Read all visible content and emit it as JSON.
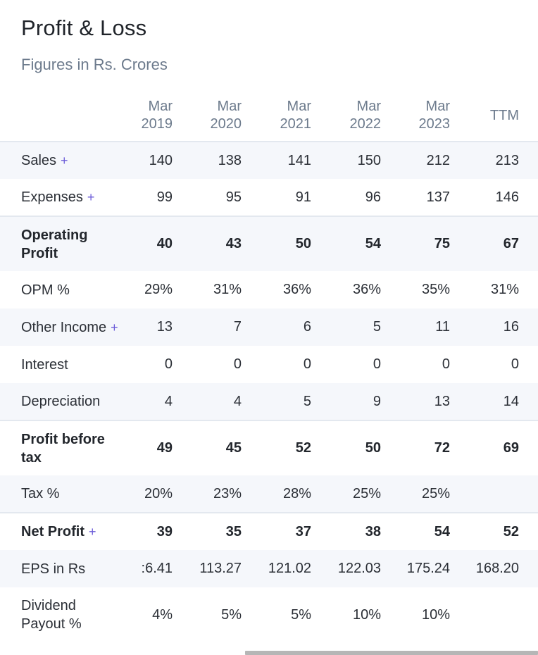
{
  "header": {
    "title": "Profit & Loss",
    "subtitle": "Figures in Rs. Crores"
  },
  "columns": [
    {
      "month": "Mar",
      "year": "2019"
    },
    {
      "month": "Mar",
      "year": "2020"
    },
    {
      "month": "Mar",
      "year": "2021"
    },
    {
      "month": "Mar",
      "year": "2022"
    },
    {
      "month": "Mar",
      "year": "2023"
    },
    {
      "label": "TTM"
    }
  ],
  "rows": [
    {
      "label": "Sales",
      "expand": "+",
      "values": [
        "140",
        "138",
        "141",
        "150",
        "212",
        "213"
      ]
    },
    {
      "label": "Expenses",
      "expand": "+",
      "values": [
        "99",
        "95",
        "91",
        "96",
        "137",
        "146"
      ]
    },
    {
      "label": "Operating Profit",
      "values": [
        "40",
        "43",
        "50",
        "54",
        "75",
        "67"
      ]
    },
    {
      "label": "OPM %",
      "values": [
        "29%",
        "31%",
        "36%",
        "36%",
        "35%",
        "31%"
      ]
    },
    {
      "label": "Other Income",
      "expand": "+",
      "values": [
        "13",
        "7",
        "6",
        "5",
        "11",
        "16"
      ]
    },
    {
      "label": "Interest",
      "values": [
        "0",
        "0",
        "0",
        "0",
        "0",
        "0"
      ]
    },
    {
      "label": "Depreciation",
      "values": [
        "4",
        "4",
        "5",
        "9",
        "13",
        "14"
      ]
    },
    {
      "label": "Profit before tax",
      "values": [
        "49",
        "45",
        "52",
        "50",
        "72",
        "69"
      ]
    },
    {
      "label": "Tax %",
      "values": [
        "20%",
        "23%",
        "28%",
        "25%",
        "25%",
        ""
      ]
    },
    {
      "label": "Net Profit",
      "expand": "+",
      "values": [
        "39",
        "35",
        "37",
        "38",
        "54",
        "52"
      ]
    },
    {
      "label": "EPS in Rs",
      "values": ":6.41",
      "values_list": [
        ":6.41",
        "113.27",
        "121.02",
        "122.03",
        "175.24",
        "168.20"
      ]
    },
    {
      "label": "Dividend Payout %",
      "values": [
        "4%",
        "5%",
        "5%",
        "10%",
        "10%",
        ""
      ]
    }
  ],
  "colors": {
    "expand_plus": "#6b5bd8",
    "stripe": "#f5f7fb",
    "muted_text": "#6c7a8c"
  }
}
